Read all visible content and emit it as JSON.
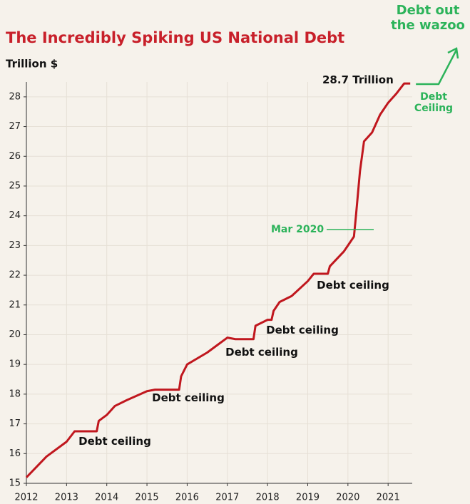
{
  "chart_data": {
    "type": "line",
    "title": "The Incredibly Spiking US National Debt",
    "y_label": "Trillion $",
    "x": [
      2012.0,
      2012.5,
      2013.0,
      2013.2,
      2013.4,
      2013.75,
      2013.8,
      2014.0,
      2014.2,
      2014.5,
      2015.0,
      2015.2,
      2015.8,
      2015.85,
      2016.0,
      2016.5,
      2016.8,
      2017.0,
      2017.2,
      2017.65,
      2017.7,
      2018.0,
      2018.1,
      2018.15,
      2018.3,
      2018.6,
      2019.0,
      2019.15,
      2019.5,
      2019.55,
      2019.9,
      2020.0,
      2020.15,
      2020.2,
      2020.3,
      2020.4,
      2020.6,
      2020.8,
      2021.0,
      2021.2,
      2021.4,
      2021.55
    ],
    "series": [
      {
        "name": "US National Debt",
        "color": "#c0171e",
        "values": [
          15.2,
          15.9,
          16.4,
          16.75,
          16.75,
          16.75,
          17.1,
          17.3,
          17.6,
          17.8,
          18.1,
          18.15,
          18.15,
          18.6,
          19.0,
          19.4,
          19.7,
          19.9,
          19.85,
          19.85,
          20.3,
          20.5,
          20.5,
          20.8,
          21.1,
          21.3,
          21.8,
          22.05,
          22.05,
          22.3,
          22.8,
          23.0,
          23.3,
          24.0,
          25.5,
          26.5,
          26.8,
          27.4,
          27.8,
          28.1,
          28.45,
          28.45
        ]
      }
    ],
    "xlim": [
      2012,
      2021.6
    ],
    "xticks": [
      2012,
      2013,
      2014,
      2015,
      2016,
      2017,
      2018,
      2019,
      2020,
      2021
    ],
    "ylim": [
      15,
      28.5
    ],
    "yticks": [
      15,
      16,
      17,
      18,
      19,
      20,
      21,
      22,
      23,
      24,
      25,
      26,
      27,
      28
    ],
    "grid": true,
    "annotations": [
      "28.7 Trillion",
      "Debt ceiling",
      "Debt ceiling",
      "Debt ceiling",
      "Debt ceiling",
      "Debt ceiling",
      "Mar 2020",
      "Debt Ceiling",
      "Debt out the wazoo"
    ]
  }
}
